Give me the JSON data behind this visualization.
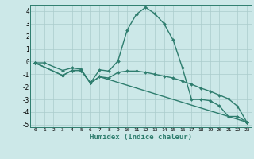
{
  "xlabel": "Humidex (Indice chaleur)",
  "background_color": "#cce8e8",
  "line_color": "#2e7d6e",
  "grid_color": "#aacccc",
  "xlim": [
    -0.5,
    23.5
  ],
  "ylim": [
    -5.2,
    4.5
  ],
  "yticks": [
    -5,
    -4,
    -3,
    -2,
    -1,
    0,
    1,
    2,
    3,
    4
  ],
  "xticks": [
    0,
    1,
    2,
    3,
    4,
    5,
    6,
    7,
    8,
    9,
    10,
    11,
    12,
    13,
    14,
    15,
    16,
    17,
    18,
    19,
    20,
    21,
    22,
    23
  ],
  "series1_x": [
    0,
    1,
    3,
    4,
    5,
    6,
    7,
    8,
    9,
    10,
    11,
    12,
    13,
    14,
    15,
    16,
    17,
    18,
    19,
    20,
    21,
    22,
    23
  ],
  "series1_y": [
    -0.1,
    -0.1,
    -0.7,
    -0.5,
    -0.6,
    -1.7,
    -0.65,
    -0.75,
    0.05,
    2.5,
    3.75,
    4.3,
    3.8,
    3.0,
    1.7,
    -0.5,
    -3.0,
    -3.0,
    -3.1,
    -3.5,
    -4.35,
    -4.35,
    -4.8
  ],
  "series2_x": [
    0,
    3,
    4,
    5,
    6,
    7,
    8,
    9,
    10,
    11,
    12,
    13,
    14,
    15,
    16,
    17,
    18,
    19,
    20,
    21,
    22,
    23
  ],
  "series2_y": [
    -0.1,
    -1.1,
    -0.7,
    -0.7,
    -1.7,
    -1.2,
    -1.3,
    -0.85,
    -0.75,
    -0.75,
    -0.85,
    -1.0,
    -1.15,
    -1.3,
    -1.55,
    -1.8,
    -2.1,
    -2.35,
    -2.65,
    -2.95,
    -3.55,
    -4.8
  ],
  "series3_x": [
    0,
    3,
    4,
    5,
    6,
    7,
    23
  ],
  "series3_y": [
    -0.1,
    -1.1,
    -0.7,
    -0.7,
    -1.7,
    -1.2,
    -4.8
  ],
  "marker": "D",
  "markersize": 2.0,
  "linewidth": 1.0
}
